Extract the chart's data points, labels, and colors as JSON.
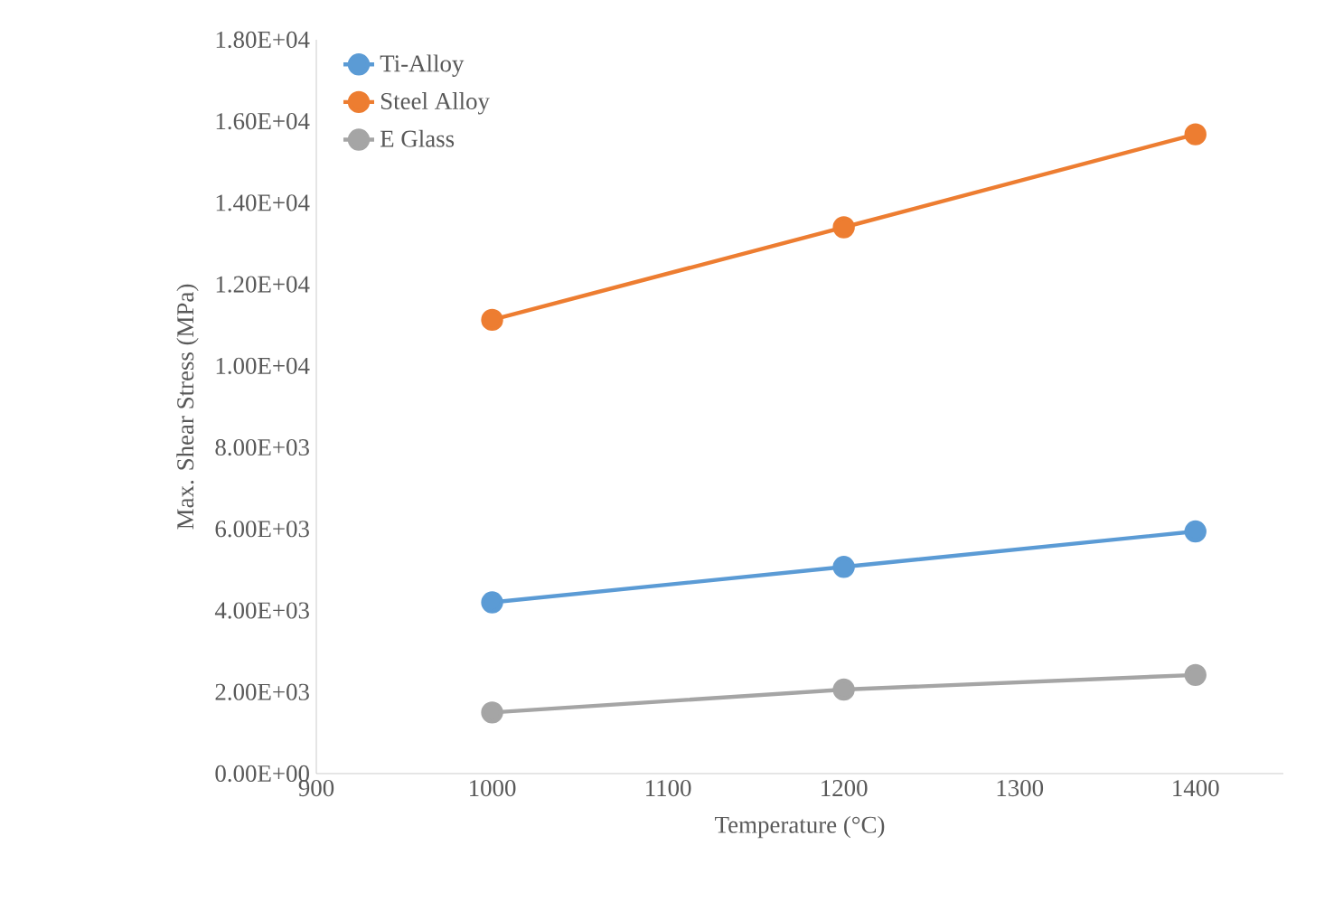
{
  "chart_data": {
    "type": "line",
    "xlabel": "Temperature (°C)",
    "ylabel": "Max. Shear Stress (MPa)",
    "x": [
      1000,
      1200,
      1400
    ],
    "series": [
      {
        "name": "Ti-Alloy",
        "color": "#5b9bd5",
        "values": [
          4200,
          5070,
          5940
        ]
      },
      {
        "name": "Steel Alloy",
        "color": "#ed7d31",
        "values": [
          11130,
          13400,
          15680
        ]
      },
      {
        "name": "E Glass",
        "color": "#a5a5a5",
        "values": [
          1500,
          2060,
          2420
        ]
      }
    ],
    "xlim": [
      900,
      1450
    ],
    "xticks": [
      900,
      1000,
      1100,
      1200,
      1300,
      1400
    ],
    "ylim": [
      0,
      18000
    ],
    "yticks": [
      {
        "value": 0,
        "label": "0.00E+00"
      },
      {
        "value": 2000,
        "label": "2.00E+03"
      },
      {
        "value": 4000,
        "label": "4.00E+03"
      },
      {
        "value": 6000,
        "label": "6.00E+03"
      },
      {
        "value": 8000,
        "label": "8.00E+03"
      },
      {
        "value": 10000,
        "label": "1.00E+04"
      },
      {
        "value": 12000,
        "label": "1.20E+04"
      },
      {
        "value": 14000,
        "label": "1.40E+04"
      },
      {
        "value": 16000,
        "label": "1.60E+04"
      },
      {
        "value": 18000,
        "label": "1.80E+04"
      }
    ],
    "grid": false,
    "legend": "top left",
    "marker": "circle",
    "line_style": "solid"
  }
}
